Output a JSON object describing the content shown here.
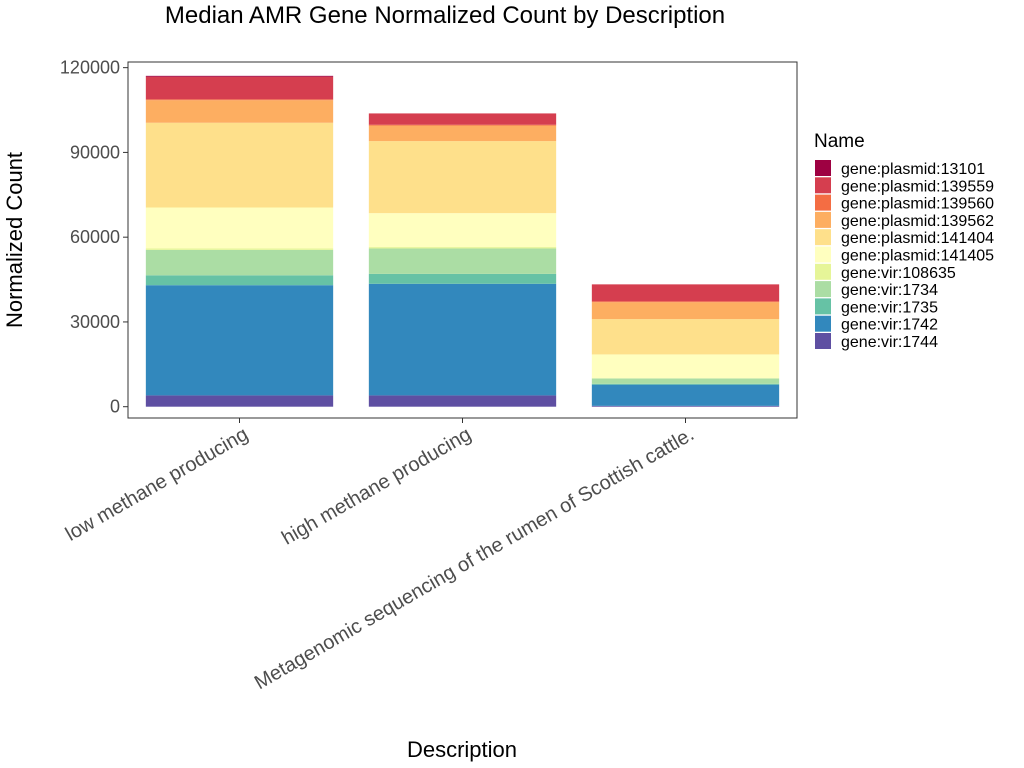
{
  "chart_data": {
    "type": "bar",
    "stacked": true,
    "title": "Median AMR Gene Normalized Count by Description",
    "xlabel": "Description",
    "ylabel": "Normalized Count",
    "ylim": [
      -4000,
      122000
    ],
    "yticks": [
      "0",
      "30000",
      "60000",
      "90000",
      "120000"
    ],
    "ytick_values": [
      0,
      30000,
      60000,
      90000,
      120000
    ],
    "categories": [
      "low methane producing",
      "high methane producing",
      "Metagenomic sequencing of the rumen of Scottish cattle."
    ],
    "legend_title": "Name",
    "legend_position": "right",
    "grid": false,
    "series": [
      {
        "name": "gene:vir:1744",
        "color": "#5E4FA2",
        "values": [
          4000,
          4000,
          300
        ]
      },
      {
        "name": "gene:vir:1742",
        "color": "#3288BD",
        "values": [
          39000,
          39500,
          7500
        ]
      },
      {
        "name": "gene:vir:1735",
        "color": "#66C2A5",
        "values": [
          3500,
          3500,
          300
        ]
      },
      {
        "name": "gene:vir:1734",
        "color": "#ABDDA4",
        "values": [
          9000,
          9000,
          1900
        ]
      },
      {
        "name": "gene:vir:108635",
        "color": "#E6F598",
        "values": [
          500,
          500,
          0
        ]
      },
      {
        "name": "gene:plasmid:141405",
        "color": "#FFFFBF",
        "values": [
          14500,
          12000,
          8500
        ]
      },
      {
        "name": "gene:plasmid:141404",
        "color": "#FEE08B",
        "values": [
          30000,
          25500,
          12500
        ]
      },
      {
        "name": "gene:plasmid:139562",
        "color": "#FDAE61",
        "values": [
          8000,
          5500,
          6000
        ]
      },
      {
        "name": "gene:plasmid:139560",
        "color": "#F46D43",
        "values": [
          300,
          300,
          300
        ]
      },
      {
        "name": "gene:plasmid:139559",
        "color": "#D53E4F",
        "values": [
          8000,
          4000,
          6000
        ]
      },
      {
        "name": "gene:plasmid:13101",
        "color": "#9E0142",
        "values": [
          300,
          0,
          0
        ]
      }
    ],
    "legend_order": [
      "gene:plasmid:13101",
      "gene:plasmid:139559",
      "gene:plasmid:139560",
      "gene:plasmid:139562",
      "gene:plasmid:141404",
      "gene:plasmid:141405",
      "gene:vir:108635",
      "gene:vir:1734",
      "gene:vir:1735",
      "gene:vir:1742",
      "gene:vir:1744"
    ]
  }
}
